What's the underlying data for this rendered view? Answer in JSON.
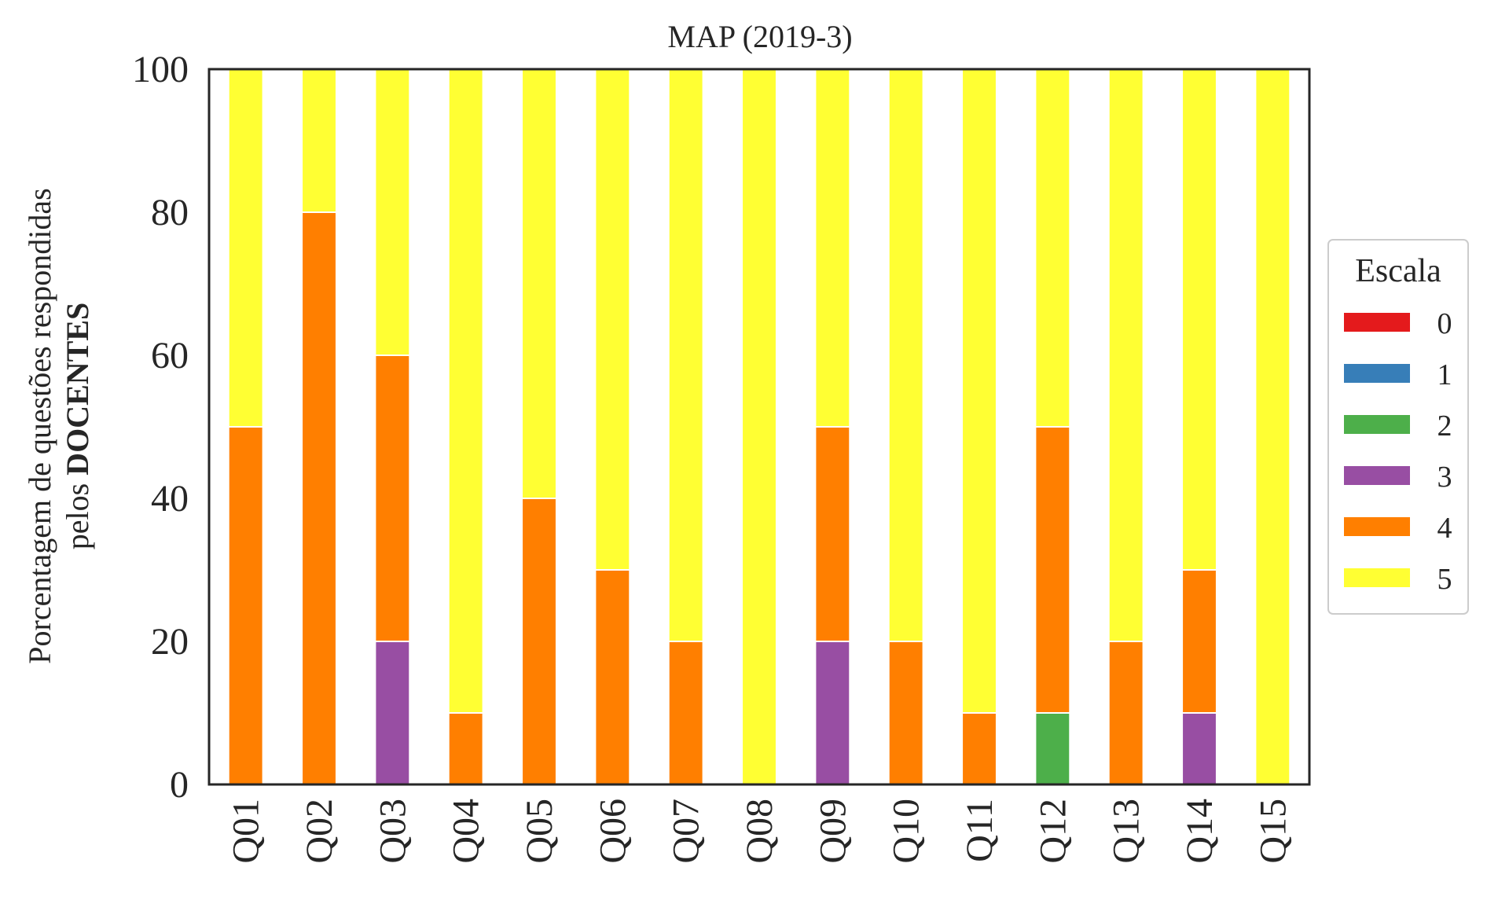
{
  "chart_data": {
    "type": "bar",
    "stacked": true,
    "title": "MAP (2019-3)",
    "ylabel_line1": "Porcentagem de questões respondidas",
    "ylabel_line2_prefix": "pelos ",
    "ylabel_line2_bold": "DOCENTES",
    "xlabel": "",
    "ylim": [
      0,
      100
    ],
    "yticks": [
      0,
      20,
      40,
      60,
      80,
      100
    ],
    "grid": false,
    "legend": {
      "title": "Escala",
      "placement": "center-right-outside"
    },
    "categories": [
      "Q01",
      "Q02",
      "Q03",
      "Q04",
      "Q05",
      "Q06",
      "Q07",
      "Q08",
      "Q09",
      "Q10",
      "Q11",
      "Q12",
      "Q13",
      "Q14",
      "Q15"
    ],
    "series": [
      {
        "name": "0",
        "color": "#e41a1c",
        "values": [
          0,
          0,
          0,
          0,
          0,
          0,
          0,
          0,
          0,
          0,
          0,
          0,
          0,
          0,
          0
        ]
      },
      {
        "name": "1",
        "color": "#377eb8",
        "values": [
          0,
          0,
          0,
          0,
          0,
          0,
          0,
          0,
          0,
          0,
          0,
          0,
          0,
          0,
          0
        ]
      },
      {
        "name": "2",
        "color": "#4daf4a",
        "values": [
          0,
          0,
          0,
          0,
          0,
          0,
          0,
          0,
          0,
          0,
          0,
          10,
          0,
          0,
          0
        ]
      },
      {
        "name": "3",
        "color": "#984ea3",
        "values": [
          0,
          0,
          20,
          0,
          0,
          0,
          0,
          0,
          20,
          0,
          0,
          0,
          0,
          10,
          0
        ]
      },
      {
        "name": "4",
        "color": "#ff7f00",
        "values": [
          50,
          80,
          40,
          10,
          40,
          30,
          20,
          0,
          30,
          20,
          10,
          40,
          20,
          20,
          0
        ]
      },
      {
        "name": "5",
        "color": "#ffff33",
        "values": [
          50,
          20,
          40,
          90,
          60,
          70,
          80,
          100,
          50,
          80,
          90,
          50,
          80,
          70,
          100
        ]
      }
    ]
  }
}
